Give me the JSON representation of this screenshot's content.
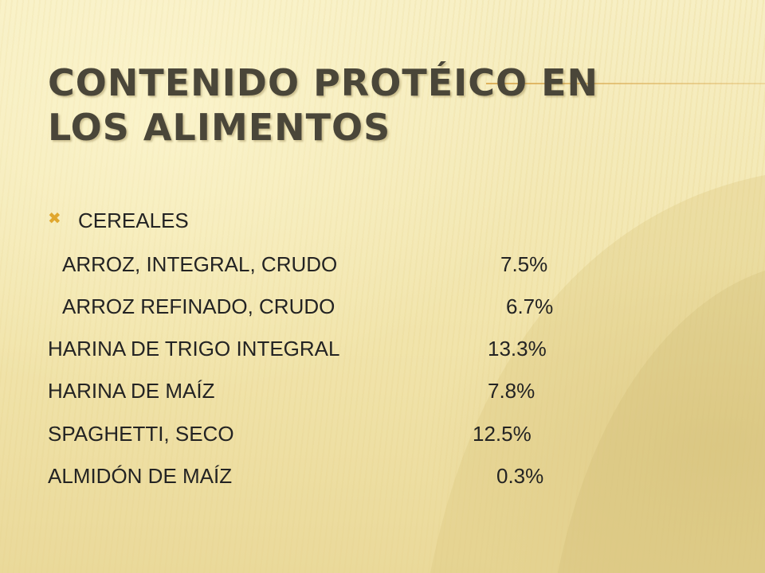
{
  "slide": {
    "title_line1": "CONTENIDO PROTÉICO EN",
    "title_line2": "LOS ALIMENTOS",
    "section_label": "CEREALES",
    "bullet_icon": "x-mark-bullet-icon",
    "accent_color": "#e0a72e",
    "items": [
      {
        "name": "ARROZ, INTEGRAL, CRUDO",
        "value": "7.5%"
      },
      {
        "name": "ARROZ REFINADO, CRUDO",
        "value": "6.7%"
      },
      {
        "name": "HARINA DE TRIGO INTEGRAL",
        "value": "13.3%"
      },
      {
        "name": "HARINA DE MAÍZ",
        "value": "7.8%"
      },
      {
        "name": "SPAGHETTI, SECO",
        "value": "12.5%"
      },
      {
        "name": "ALMIDÓN DE MAÍZ",
        "value": "0.3%"
      }
    ]
  }
}
